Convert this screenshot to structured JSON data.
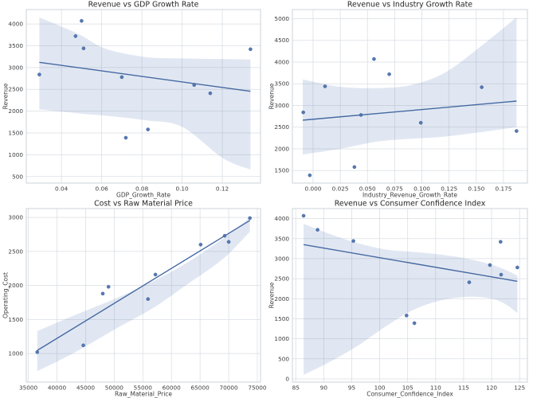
{
  "figure": {
    "background": "#ffffff",
    "colors": {
      "accent": "#4c72b0",
      "line": "#4569a2",
      "point_fill": "#4c72b0",
      "point_edge": "#3d5d8f",
      "band": "rgba(76,114,176,0.17)",
      "grid": "#d9dee3",
      "spine": "#c9cfd6",
      "title_color": "#262626",
      "tick_color": "#3d3d3d",
      "label_color": "#3d3d3d"
    }
  },
  "chart_data": [
    {
      "id": "revenue-vs-gdp-growth-rate",
      "type": "scatter",
      "title": "Revenue vs GDP Growth Rate",
      "xlabel": "GDP_Growth_Rate",
      "ylabel": "Revenue",
      "grid": true,
      "legend": null,
      "xlim": [
        0.0225,
        0.139
      ],
      "ylim": [
        350,
        4330
      ],
      "xticks": [
        0.04,
        0.06,
        0.08,
        0.1,
        0.12
      ],
      "xtick_labels": [
        "0.04",
        "0.06",
        "0.08",
        "0.10",
        "0.12"
      ],
      "yticks": [
        500,
        1000,
        1500,
        2000,
        2500,
        3000,
        3500,
        4000
      ],
      "ytick_labels": [
        "500",
        "1000",
        "1500",
        "2000",
        "2500",
        "3000",
        "3500",
        "4000"
      ],
      "points": [
        [
          0.029,
          2840
        ],
        [
          0.05,
          4070
        ],
        [
          0.047,
          3720
        ],
        [
          0.051,
          3440
        ],
        [
          0.07,
          2780
        ],
        [
          0.072,
          1390
        ],
        [
          0.083,
          1580
        ],
        [
          0.106,
          2600
        ],
        [
          0.114,
          2410
        ],
        [
          0.134,
          3420
        ]
      ],
      "regression_line": {
        "x1": 0.029,
        "y1": 3120,
        "x2": 0.134,
        "y2": 2455
      },
      "ci_band": {
        "x": [
          0.029,
          0.048,
          0.062,
          0.082,
          0.1,
          0.12,
          0.134
        ],
        "upper": [
          4150,
          3780,
          3430,
          3240,
          3210,
          3195,
          3185
        ],
        "lower": [
          2040,
          1950,
          1895,
          1790,
          1640,
          930,
          660
        ]
      }
    },
    {
      "id": "revenue-vs-industry-growth-rate",
      "type": "scatter",
      "title": "Revenue vs Industry Growth Rate",
      "xlabel": "Industry_Revenue_Growth_Rate",
      "ylabel": "Revenue",
      "grid": true,
      "legend": null,
      "xlim": [
        -0.019,
        0.197
      ],
      "ylim": [
        1210,
        5210
      ],
      "xticks": [
        0.0,
        0.025,
        0.05,
        0.075,
        0.1,
        0.125,
        0.15,
        0.175
      ],
      "xtick_labels": [
        "0.000",
        "0.025",
        "0.050",
        "0.075",
        "0.100",
        "0.125",
        "0.150",
        "0.175"
      ],
      "yticks": [
        1500,
        2000,
        2500,
        3000,
        3500,
        4000,
        4500,
        5000
      ],
      "ytick_labels": [
        "1500",
        "2000",
        "2500",
        "3000",
        "3500",
        "4000",
        "4500",
        "5000"
      ],
      "points": [
        [
          -0.009,
          2840
        ],
        [
          0.056,
          4070
        ],
        [
          0.07,
          3720
        ],
        [
          0.011,
          3440
        ],
        [
          0.044,
          2780
        ],
        [
          -0.003,
          1390
        ],
        [
          0.038,
          1580
        ],
        [
          0.099,
          2600
        ],
        [
          0.187,
          2410
        ],
        [
          0.155,
          3420
        ]
      ],
      "regression_line": {
        "x1": -0.0095,
        "y1": 2660,
        "x2": 0.187,
        "y2": 3100
      },
      "ci_band": {
        "x": [
          -0.0095,
          0.025,
          0.06,
          0.09,
          0.12,
          0.15,
          0.187
        ],
        "upper": [
          3600,
          3430,
          3400,
          3470,
          3740,
          4280,
          5030
        ],
        "lower": [
          1870,
          2000,
          2170,
          2230,
          2280,
          2370,
          2500
        ]
      }
    },
    {
      "id": "cost-vs-raw-material-price",
      "type": "scatter",
      "title": "Cost vs Raw Material Price",
      "xlabel": "Raw_Material_Price",
      "ylabel": "Operating_Cost",
      "grid": true,
      "legend": null,
      "xlim": [
        34640,
        75560
      ],
      "ylim": [
        580,
        3130
      ],
      "xticks": [
        35000,
        40000,
        45000,
        50000,
        55000,
        60000,
        65000,
        70000,
        75000
      ],
      "xtick_labels": [
        "35000",
        "40000",
        "45000",
        "50000",
        "55000",
        "60000",
        "65000",
        "70000",
        "75000"
      ],
      "yticks": [
        1000,
        1500,
        2000,
        2500,
        3000
      ],
      "ytick_labels": [
        "1000",
        "1500",
        "2000",
        "2500",
        "3000"
      ],
      "points": [
        [
          36550,
          1020
        ],
        [
          44600,
          1120
        ],
        [
          48000,
          1880
        ],
        [
          49000,
          1980
        ],
        [
          55900,
          1800
        ],
        [
          57200,
          2160
        ],
        [
          65100,
          2600
        ],
        [
          69300,
          2730
        ],
        [
          70000,
          2640
        ],
        [
          73700,
          2990
        ]
      ],
      "regression_line": {
        "x1": 36550,
        "y1": 1045,
        "x2": 73700,
        "y2": 2955
      },
      "ci_band": {
        "x": [
          36550,
          43000,
          50000,
          57000,
          63000,
          69000,
          73700
        ],
        "upper": [
          1330,
          1560,
          1800,
          2070,
          2350,
          2690,
          3000
        ],
        "lower": [
          740,
          1010,
          1350,
          1680,
          2030,
          2390,
          2790
        ]
      }
    },
    {
      "id": "revenue-vs-consumer-confidence-index",
      "type": "scatter",
      "title": "Revenue vs Consumer Confidence Index",
      "xlabel": "Consumer_Confidence_Index",
      "ylabel": "Revenue",
      "grid": true,
      "legend": null,
      "xlim": [
        84.4,
        126.4
      ],
      "ylim": [
        -80,
        4250
      ],
      "xticks": [
        85,
        90,
        95,
        100,
        105,
        110,
        115,
        120,
        125
      ],
      "xtick_labels": [
        "85",
        "90",
        "95",
        "100",
        "105",
        "110",
        "115",
        "120",
        "125"
      ],
      "yticks": [
        0,
        500,
        1000,
        1500,
        2000,
        2500,
        3000,
        3500,
        4000
      ],
      "ytick_labels": [
        "0",
        "500",
        "1000",
        "1500",
        "2000",
        "2500",
        "3000",
        "3500",
        "4000"
      ],
      "points": [
        [
          119.7,
          2840
        ],
        [
          86.4,
          4070
        ],
        [
          88.9,
          3720
        ],
        [
          95.3,
          3440
        ],
        [
          124.6,
          2780
        ],
        [
          106.2,
          1390
        ],
        [
          104.8,
          1580
        ],
        [
          121.7,
          2600
        ],
        [
          116.0,
          2410
        ],
        [
          121.6,
          3420
        ]
      ],
      "regression_line": {
        "x1": 86.4,
        "y1": 3350,
        "x2": 124.6,
        "y2": 2435
      },
      "ci_band": {
        "x": [
          86.4,
          91,
          96,
          101,
          106,
          111,
          116,
          120,
          122.5,
          124.6
        ],
        "upper": [
          3870,
          3620,
          3390,
          3230,
          3170,
          3100,
          2990,
          2850,
          2720,
          2580
        ],
        "lower": [
          100,
          420,
          820,
          1300,
          1720,
          1960,
          2050,
          2000,
          1860,
          1640
        ]
      }
    }
  ]
}
